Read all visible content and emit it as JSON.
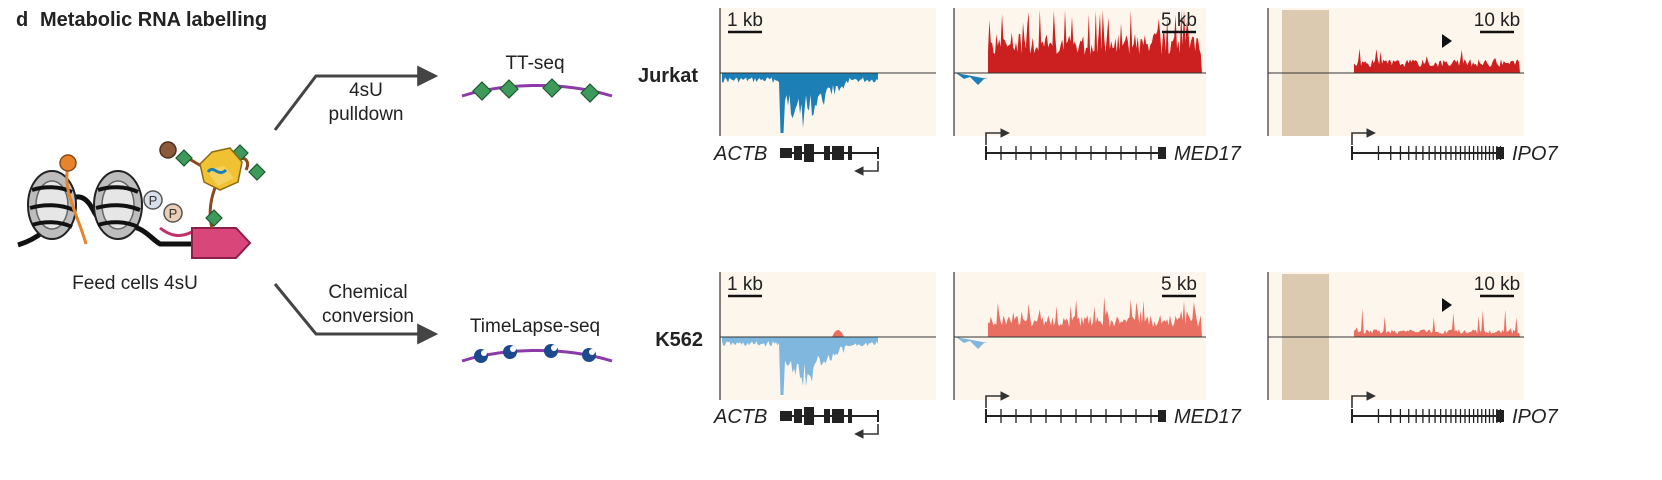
{
  "panel": {
    "letter": "d",
    "title": "Metabolic RNA labelling"
  },
  "steps": {
    "feed": "Feed cells 4sU",
    "top_arrow": [
      "4sU",
      "pulldown"
    ],
    "bottom_arrow": [
      "Chemical",
      "conversion"
    ],
    "method_top": "TT-seq",
    "method_bottom": "TimeLapse-seq",
    "phospho": "P"
  },
  "rows": [
    {
      "cell_line": "Jurkat"
    },
    {
      "cell_line": "K562"
    }
  ],
  "genes": [
    {
      "name": "ACTB",
      "scale": "1 kb"
    },
    {
      "name": "MED17",
      "scale": "5 kb"
    },
    {
      "name": "IPO7",
      "scale": "10 kb"
    }
  ],
  "colors": {
    "track_bg": "#fdf6ec",
    "forward_strong": "#cc1f1f",
    "forward_light": "#e86f62",
    "reverse_strong": "#1c7fb5",
    "reverse_light": "#7fb7de",
    "masked_region": "#dccab0",
    "rna_strand": "#8b3aa8",
    "label_diamond": "#3e9a5a",
    "converted_base": "#1c4a8c",
    "polymerase": "#d8467a",
    "nucleotide": "#f0c233"
  }
}
